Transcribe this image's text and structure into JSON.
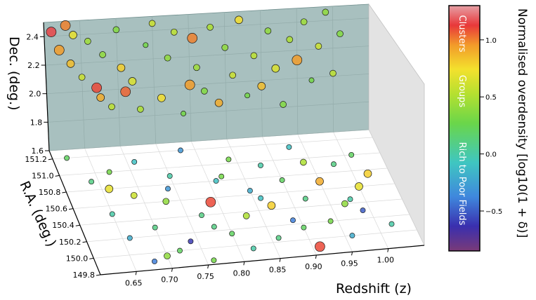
{
  "chart_data": {
    "type": "scatter",
    "projection": "3d",
    "title": "",
    "xlabel": "Redshift (z)",
    "ylabel": "R.A. (deg.)",
    "zlabel": "Dec. (deg.)",
    "xlim": [
      0.6,
      1.05
    ],
    "ylim": [
      149.8,
      151.3
    ],
    "zlim": [
      1.6,
      2.5
    ],
    "x_ticks": [
      "0.65",
      "0.70",
      "0.75",
      "0.80",
      "0.85",
      "0.90",
      "0.95",
      "1.00"
    ],
    "y_ticks": [
      "149.8",
      "150.0",
      "150.2",
      "150.4",
      "150.6",
      "150.8",
      "151.0",
      "151.2"
    ],
    "z_ticks": [
      "1.6",
      "1.8",
      "2.0",
      "2.2",
      "2.4"
    ],
    "grid": true,
    "colorbar": {
      "label": "Normalised overdensity [log10(1 + δ)]",
      "range": [
        -0.85,
        1.3
      ],
      "ticks": [
        "−0.5",
        "0.0",
        "0.5",
        "1.0"
      ],
      "tick_values": [
        -0.5,
        0.0,
        0.5,
        1.0
      ],
      "bands": [
        "Clusters",
        "Groups",
        "Rich to Poor Fields"
      ]
    },
    "wall_points": [
      [
        0.61,
        2.43,
        1.15
      ],
      [
        0.62,
        2.3,
        0.95
      ],
      [
        0.63,
        2.47,
        1.0
      ],
      [
        0.635,
        2.2,
        0.85
      ],
      [
        0.64,
        2.4,
        0.7
      ],
      [
        0.65,
        2.1,
        0.6
      ],
      [
        0.66,
        2.35,
        0.45
      ],
      [
        0.67,
        2.02,
        1.1
      ],
      [
        0.675,
        1.95,
        0.9
      ],
      [
        0.68,
        2.25,
        0.4
      ],
      [
        0.69,
        1.88,
        0.55
      ],
      [
        0.7,
        2.42,
        0.35
      ],
      [
        0.705,
        2.15,
        0.8
      ],
      [
        0.71,
        1.98,
        1.05
      ],
      [
        0.72,
        2.05,
        0.65
      ],
      [
        0.73,
        1.85,
        0.5
      ],
      [
        0.74,
        2.3,
        0.3
      ],
      [
        0.75,
        2.45,
        0.6
      ],
      [
        0.76,
        1.92,
        0.75
      ],
      [
        0.77,
        2.2,
        0.4
      ],
      [
        0.78,
        2.38,
        0.55
      ],
      [
        0.79,
        1.8,
        0.3
      ],
      [
        0.8,
        2.0,
        0.95
      ],
      [
        0.805,
        2.33,
        1.0
      ],
      [
        0.81,
        2.12,
        0.45
      ],
      [
        0.82,
        1.95,
        0.35
      ],
      [
        0.83,
        2.4,
        0.5
      ],
      [
        0.84,
        1.86,
        0.9
      ],
      [
        0.85,
        2.25,
        0.4
      ],
      [
        0.86,
        2.05,
        0.6
      ],
      [
        0.87,
        2.44,
        0.75
      ],
      [
        0.88,
        1.9,
        0.3
      ],
      [
        0.89,
        2.18,
        0.55
      ],
      [
        0.9,
        1.96,
        0.85
      ],
      [
        0.91,
        2.35,
        0.4
      ],
      [
        0.92,
        2.08,
        0.65
      ],
      [
        0.93,
        1.82,
        0.35
      ],
      [
        0.94,
        2.28,
        0.5
      ],
      [
        0.95,
        2.13,
        0.95
      ],
      [
        0.96,
        2.4,
        0.45
      ],
      [
        0.97,
        1.98,
        0.3
      ],
      [
        0.98,
        2.22,
        0.6
      ],
      [
        0.99,
        2.46,
        0.4
      ],
      [
        1.0,
        2.02,
        0.55
      ],
      [
        1.01,
        2.3,
        0.35
      ]
    ],
    "floor_points": [
      [
        0.62,
        151.2,
        0.2
      ],
      [
        0.64,
        150.9,
        0.1
      ],
      [
        0.65,
        150.5,
        0.0
      ],
      [
        0.66,
        150.2,
        -0.2
      ],
      [
        0.67,
        151.0,
        0.3
      ],
      [
        0.68,
        149.9,
        -0.4
      ],
      [
        0.69,
        150.7,
        0.6
      ],
      [
        0.7,
        150.3,
        0.1
      ],
      [
        0.71,
        151.1,
        -0.1
      ],
      [
        0.72,
        150.0,
        0.2
      ],
      [
        0.73,
        150.6,
        0.4
      ],
      [
        0.74,
        150.1,
        -0.6
      ],
      [
        0.75,
        150.9,
        0.0
      ],
      [
        0.76,
        149.85,
        0.3
      ],
      [
        0.77,
        150.4,
        0.1
      ],
      [
        0.78,
        151.2,
        -0.3
      ],
      [
        0.79,
        150.55,
        1.1
      ],
      [
        0.8,
        150.15,
        0.2
      ],
      [
        0.81,
        150.8,
        -0.1
      ],
      [
        0.82,
        149.95,
        0.0
      ],
      [
        0.83,
        150.35,
        0.5
      ],
      [
        0.84,
        151.05,
        0.3
      ],
      [
        0.85,
        150.65,
        -0.2
      ],
      [
        0.86,
        150.05,
        0.1
      ],
      [
        0.87,
        150.45,
        0.8
      ],
      [
        0.88,
        150.95,
        0.0
      ],
      [
        0.89,
        150.25,
        -0.4
      ],
      [
        0.9,
        150.75,
        0.2
      ],
      [
        0.91,
        149.9,
        1.1
      ],
      [
        0.92,
        150.5,
        0.1
      ],
      [
        0.93,
        151.15,
        -0.1
      ],
      [
        0.94,
        150.2,
        0.3
      ],
      [
        0.95,
        150.7,
        0.9
      ],
      [
        0.96,
        150.0,
        -0.2
      ],
      [
        0.97,
        150.4,
        0.4
      ],
      [
        0.98,
        150.9,
        0.1
      ],
      [
        0.99,
        150.3,
        -0.5
      ],
      [
        1.0,
        150.6,
        0.7
      ],
      [
        1.01,
        151.0,
        0.2
      ],
      [
        1.02,
        150.1,
        0.0
      ],
      [
        0.66,
        150.8,
        0.7
      ],
      [
        0.7,
        149.95,
        0.4
      ],
      [
        0.74,
        150.75,
        -0.3
      ],
      [
        0.78,
        150.25,
        0.1
      ],
      [
        0.82,
        150.85,
        0.3
      ],
      [
        0.86,
        150.55,
        -0.1
      ],
      [
        0.9,
        150.15,
        0.2
      ],
      [
        0.94,
        150.95,
        0.5
      ],
      [
        0.98,
        150.45,
        0.0
      ],
      [
        1.02,
        150.75,
        0.8
      ]
    ]
  }
}
